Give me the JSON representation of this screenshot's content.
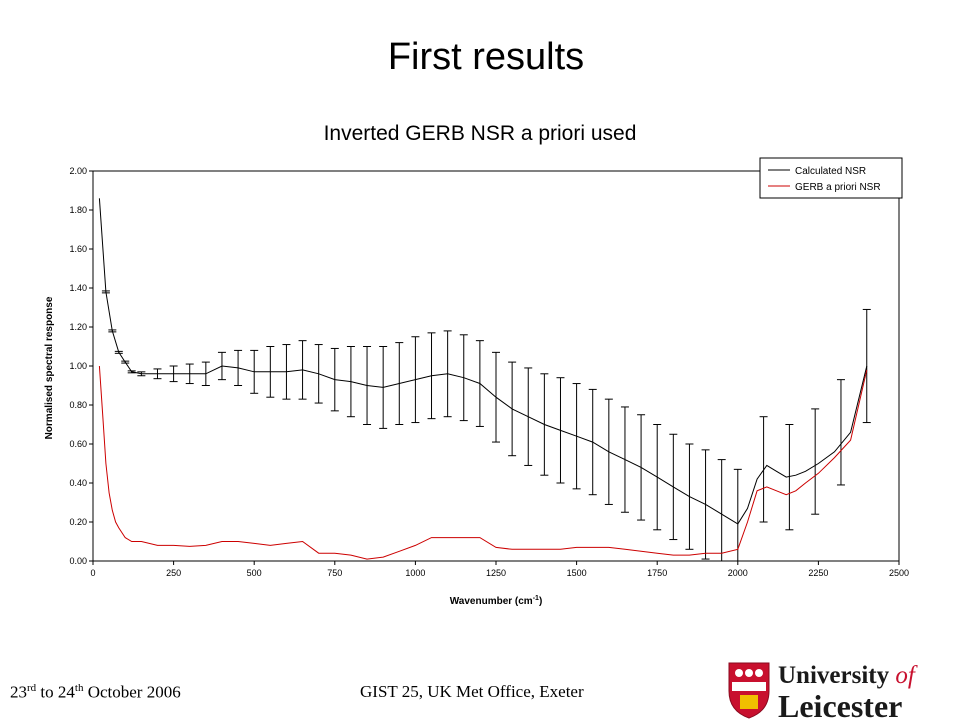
{
  "slide": {
    "title": "First results",
    "footer_date_pre": "23",
    "footer_date_sup1": "rd",
    "footer_date_mid": " to 24",
    "footer_date_sup2": "th",
    "footer_date_post": " October 2006",
    "footer_event": "GIST 25, UK Met Office, Exeter",
    "logo_word1": "University",
    "logo_word2": "of",
    "logo_word3": "Leicester"
  },
  "chart_data": {
    "type": "line",
    "title": "Inverted GERB NSR a priori used",
    "xlabel": "Wavenumber (cm",
    "xlabel_sup": "-1",
    "xlabel_end": ")",
    "ylabel": "Normalised spectral response",
    "xlim": [
      0,
      2500
    ],
    "ylim": [
      0,
      2.0
    ],
    "x_ticks": [
      0,
      250,
      500,
      750,
      1000,
      1250,
      1500,
      1750,
      2000,
      2250,
      2500
    ],
    "y_ticks": [
      "0.00",
      "0.20",
      "0.40",
      "0.60",
      "0.80",
      "1.00",
      "1.20",
      "1.40",
      "1.60",
      "1.80",
      "2.00"
    ],
    "legend_position": "top-right",
    "colors": {
      "calculated": "#000000",
      "apriori": "#cc0000"
    },
    "series": [
      {
        "name": "Calculated NSR",
        "x": [
          20,
          40,
          60,
          80,
          100,
          120,
          150,
          200,
          250,
          300,
          350,
          400,
          450,
          500,
          550,
          600,
          650,
          700,
          750,
          800,
          850,
          900,
          950,
          1000,
          1050,
          1100,
          1150,
          1200,
          1250,
          1300,
          1350,
          1400,
          1450,
          1500,
          1550,
          1600,
          1650,
          1700,
          1750,
          1800,
          1850,
          1900,
          1950,
          2000,
          2030,
          2060,
          2090,
          2120,
          2150,
          2180,
          2210,
          2250,
          2300,
          2350,
          2400
        ],
        "values": [
          1.86,
          1.38,
          1.18,
          1.07,
          1.02,
          0.97,
          0.96,
          0.96,
          0.96,
          0.96,
          0.96,
          1.0,
          0.99,
          0.97,
          0.97,
          0.97,
          0.98,
          0.96,
          0.93,
          0.92,
          0.9,
          0.89,
          0.91,
          0.93,
          0.95,
          0.96,
          0.94,
          0.91,
          0.84,
          0.78,
          0.74,
          0.7,
          0.67,
          0.64,
          0.61,
          0.56,
          0.52,
          0.48,
          0.43,
          0.38,
          0.33,
          0.29,
          0.24,
          0.19,
          0.27,
          0.42,
          0.49,
          0.46,
          0.43,
          0.44,
          0.46,
          0.5,
          0.56,
          0.66,
          1.0
        ],
        "errors": [
          0,
          0.005,
          0.005,
          0.005,
          0.005,
          0.005,
          0.01,
          0.025,
          0.04,
          0.05,
          0.06,
          0.07,
          0.09,
          0.11,
          0.13,
          0.14,
          0.15,
          0.15,
          0.16,
          0.18,
          0.2,
          0.21,
          0.21,
          0.22,
          0.22,
          0.22,
          0.22,
          0.22,
          0.23,
          0.24,
          0.25,
          0.26,
          0.27,
          0.27,
          0.27,
          0.27,
          0.27,
          0.27,
          0.27,
          0.27,
          0.27,
          0.28,
          0.28,
          0.28,
          0,
          0,
          0,
          0,
          0,
          0,
          0,
          0,
          0,
          0,
          0
        ],
        "markers_x": [
          2080,
          2160,
          2240,
          2320,
          2400
        ],
        "markers_y": [
          0.47,
          0.43,
          0.51,
          0.66,
          1.0
        ],
        "markers_err": [
          0.27,
          0.27,
          0.27,
          0.27,
          0.29
        ]
      },
      {
        "name": "GERB a priori NSR",
        "x": [
          20,
          30,
          40,
          50,
          60,
          70,
          80,
          100,
          120,
          150,
          200,
          250,
          300,
          350,
          400,
          450,
          500,
          550,
          600,
          650,
          700,
          750,
          800,
          850,
          900,
          950,
          1000,
          1050,
          1100,
          1150,
          1200,
          1250,
          1300,
          1350,
          1400,
          1450,
          1500,
          1550,
          1600,
          1650,
          1700,
          1750,
          1800,
          1850,
          1900,
          1950,
          2000,
          2030,
          2060,
          2090,
          2120,
          2150,
          2180,
          2210,
          2250,
          2300,
          2350,
          2400
        ],
        "values": [
          1.0,
          0.75,
          0.5,
          0.35,
          0.26,
          0.2,
          0.17,
          0.12,
          0.1,
          0.1,
          0.08,
          0.08,
          0.075,
          0.08,
          0.1,
          0.1,
          0.09,
          0.08,
          0.09,
          0.1,
          0.04,
          0.04,
          0.03,
          0.01,
          0.02,
          0.05,
          0.08,
          0.12,
          0.12,
          0.12,
          0.12,
          0.07,
          0.06,
          0.06,
          0.06,
          0.06,
          0.07,
          0.07,
          0.07,
          0.06,
          0.05,
          0.04,
          0.03,
          0.03,
          0.04,
          0.04,
          0.06,
          0.2,
          0.36,
          0.38,
          0.36,
          0.34,
          0.36,
          0.4,
          0.45,
          0.53,
          0.62,
          0.98
        ]
      }
    ]
  }
}
